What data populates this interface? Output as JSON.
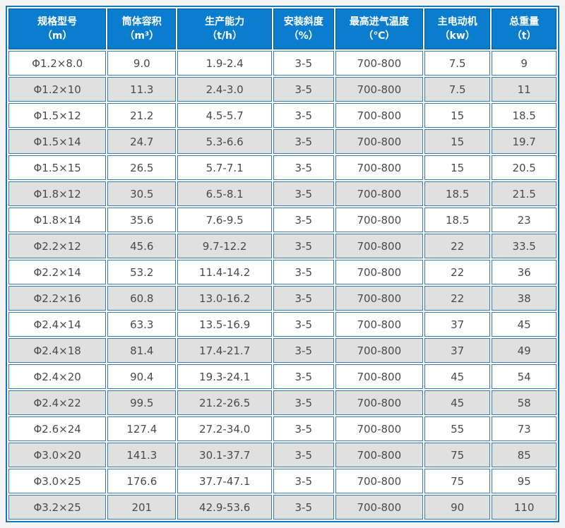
{
  "chart_data": {
    "type": "table",
    "columns": [
      {
        "name": "规格型号",
        "unit": "（m）"
      },
      {
        "name": "筒体容积",
        "unit": "（m³）"
      },
      {
        "name": "生产能力",
        "unit": "（t/h）"
      },
      {
        "name": "安装斜度",
        "unit": "（%）"
      },
      {
        "name": "最高进气温度",
        "unit": "（℃）"
      },
      {
        "name": "主电动机",
        "unit": "（kw）"
      },
      {
        "name": "总重量",
        "unit": "（t）"
      }
    ],
    "rows": [
      [
        "Φ1.2×8.0",
        "9.0",
        "1.9-2.4",
        "3-5",
        "700-800",
        "7.5",
        "9"
      ],
      [
        "Φ1.2×10",
        "11.3",
        "2.4-3.0",
        "3-5",
        "700-800",
        "7.5",
        "11"
      ],
      [
        "Φ1.5×12",
        "21.2",
        "4.5-5.7",
        "3-5",
        "700-800",
        "15",
        "18.5"
      ],
      [
        "Φ1.5×14",
        "24.7",
        "5.3-6.6",
        "3-5",
        "700-800",
        "15",
        "19.7"
      ],
      [
        "Φ1.5×15",
        "26.5",
        "5.7-7.1",
        "3-5",
        "700-800",
        "15",
        "20.5"
      ],
      [
        "Φ1.8×12",
        "30.5",
        "6.5-8.1",
        "3-5",
        "700-800",
        "18.5",
        "21.5"
      ],
      [
        "Φ1.8×14",
        "35.6",
        "7.6-9.5",
        "3-5",
        "700-800",
        "18.5",
        "23"
      ],
      [
        "Φ2.2×12",
        "45.6",
        "9.7-12.2",
        "3-5",
        "700-800",
        "22",
        "33.5"
      ],
      [
        "Φ2.2×14",
        "53.2",
        "11.4-14.2",
        "3-5",
        "700-800",
        "22",
        "36"
      ],
      [
        "Φ2.2×16",
        "60.8",
        "13.0-16.2",
        "3-5",
        "700-800",
        "22",
        "38"
      ],
      [
        "Φ2.4×14",
        "63.3",
        "13.5-16.9",
        "3-5",
        "700-800",
        "37",
        "45"
      ],
      [
        "Φ2.4×18",
        "81.4",
        "17.4-21.7",
        "3-5",
        "700-800",
        "37",
        "49"
      ],
      [
        "Φ2.4×20",
        "90.4",
        "19.3-24.1",
        "3-5",
        "700-800",
        "45",
        "54"
      ],
      [
        "Φ2.4×22",
        "99.5",
        "21.2-26.5",
        "3-5",
        "700-800",
        "45",
        "58"
      ],
      [
        "Φ2.6×24",
        "127.4",
        "27.2-34.0",
        "3-5",
        "700-800",
        "55",
        "73"
      ],
      [
        "Φ3.0×20",
        "141.3",
        "30.1-37.7",
        "3-5",
        "700-800",
        "75",
        "85"
      ],
      [
        "Φ3.0×25",
        "176.6",
        "37.7-47.1",
        "3-5",
        "700-800",
        "75",
        "95"
      ],
      [
        "Φ3.2×25",
        "201",
        "42.9-53.6",
        "3-5",
        "700-800",
        "90",
        "110"
      ]
    ],
    "layout": {
      "legend": "none",
      "grid": "cell-borders",
      "striped_rows": true
    }
  },
  "colors": {
    "header_bg": "#0b7dce",
    "header_border": "#0a5a94",
    "header_text": "#ffffff",
    "outer_border": "#1277bb",
    "cell_border": "#3d7aa6",
    "row_white": "#ffffff",
    "row_alt": "#e0e0e0",
    "body_text": "#4a4a4a",
    "page_bg": "#f3f3f3"
  }
}
